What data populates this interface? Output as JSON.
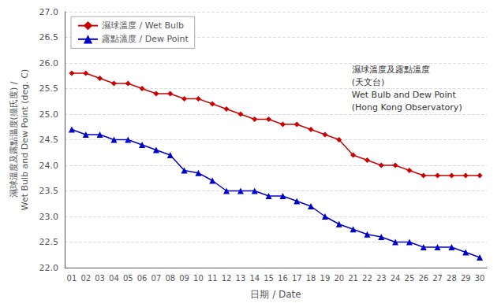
{
  "chart_data": {
    "type": "line",
    "xlabel": "日期 / Date",
    "ylabel": "濕球溫度及露點溫度(攝氏度) /\nWet Bulb and Dew Point (deg. C)",
    "annotation": "濕球溫度及露點溫度\n(天文台)\nWet Bulb and Dew Point\n(Hong Kong Observatory)",
    "categories": [
      "01",
      "02",
      "03",
      "04",
      "05",
      "06",
      "07",
      "08",
      "09",
      "10",
      "11",
      "12",
      "13",
      "14",
      "15",
      "16",
      "17",
      "18",
      "19",
      "20",
      "21",
      "22",
      "23",
      "24",
      "25",
      "26",
      "27",
      "28",
      "29",
      "30"
    ],
    "series": [
      {
        "name": "濕球溫度 / Wet Bulb",
        "color": "#cc0000",
        "marker": "diamond",
        "values": [
          25.8,
          25.8,
          25.7,
          25.6,
          25.6,
          25.5,
          25.4,
          25.4,
          25.3,
          25.3,
          25.2,
          25.1,
          25.0,
          24.9,
          24.9,
          24.8,
          24.8,
          24.7,
          24.6,
          24.5,
          24.2,
          24.1,
          24.0,
          24.0,
          23.9,
          23.8,
          23.8,
          23.8,
          23.8,
          23.8
        ]
      },
      {
        "name": "露點溫度 / Dew Point",
        "color": "#0000cc",
        "marker": "triangle",
        "values": [
          24.7,
          24.6,
          24.6,
          24.5,
          24.5,
          24.4,
          24.3,
          24.2,
          23.9,
          23.85,
          23.7,
          23.5,
          23.5,
          23.5,
          23.4,
          23.4,
          23.3,
          23.2,
          23.0,
          22.85,
          22.75,
          22.65,
          22.6,
          22.5,
          22.5,
          22.4,
          22.4,
          22.4,
          22.3,
          22.2
        ]
      }
    ],
    "ylim": [
      22.0,
      27.0
    ],
    "yticks": [
      {
        "value": 22,
        "label": "22.0"
      },
      22.5,
      {
        "value": 23,
        "label": "23.0"
      },
      23.5,
      {
        "value": 24,
        "label": "24.0"
      },
      24.5,
      {
        "value": 25,
        "label": "25.0"
      },
      25.5,
      {
        "value": 26,
        "label": "26.0"
      },
      26.5,
      {
        "value": 27,
        "label": "27.0"
      }
    ],
    "grid": true,
    "legend": "upper left"
  }
}
